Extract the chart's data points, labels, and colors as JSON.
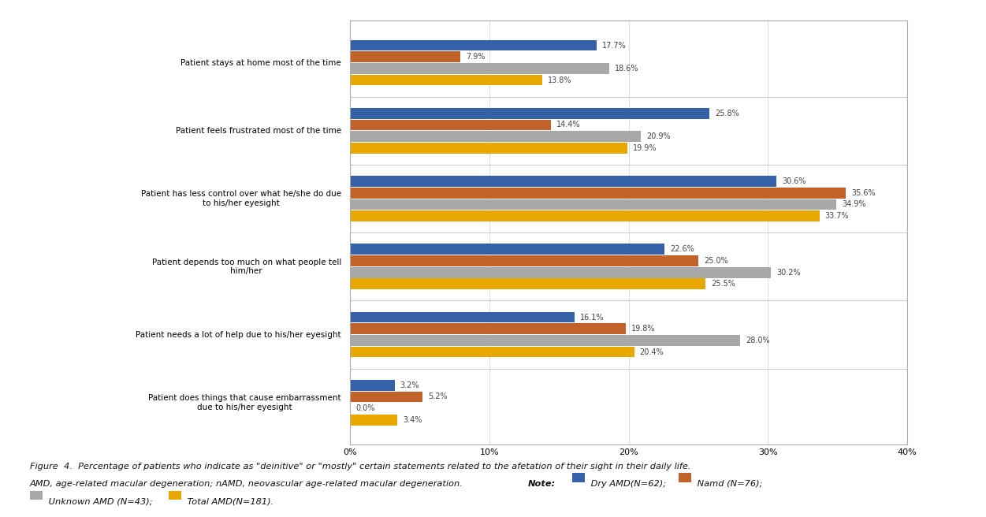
{
  "categories": [
    "Patient stays at home most of the time",
    "Patient feels frustrated most of the time",
    "Patient has less control over what he/she do due\nto his/her eyesight",
    "Patient depends too much on what people tell\nhim/her",
    "Patient needs a lot of help due to his/her eyesight",
    "Patient does things that cause embarrassment\ndue to his/her eyesight"
  ],
  "series_order": [
    "Dry AMD (N=62)",
    "Namd (N=76)",
    "Unknown AMD (N=43)",
    "Total AMD (N=181)"
  ],
  "series": {
    "Dry AMD (N=62)": [
      17.7,
      25.8,
      30.6,
      22.6,
      16.1,
      3.2
    ],
    "Namd (N=76)": [
      7.9,
      14.4,
      35.6,
      25.0,
      19.8,
      5.2
    ],
    "Unknown AMD (N=43)": [
      18.6,
      20.9,
      34.9,
      30.2,
      28.0,
      0.0
    ],
    "Total AMD (N=181)": [
      13.8,
      19.9,
      33.7,
      25.5,
      20.4,
      3.4
    ]
  },
  "colors": {
    "Dry AMD (N=62)": "#3461A8",
    "Namd (N=76)": "#C0622A",
    "Unknown AMD (N=43)": "#A8A8A8",
    "Total AMD (N=181)": "#E8A800"
  },
  "xlim": [
    0,
    40
  ],
  "xticks": [
    0,
    10,
    20,
    30,
    40
  ],
  "xticklabels": [
    "0%",
    "10%",
    "20%",
    "30%",
    "40%"
  ],
  "bar_height": 0.16,
  "group_padding": 0.55,
  "value_fontsize": 7.0,
  "label_fontsize": 7.5,
  "tick_fontsize": 8.0,
  "bg_color": "#FFFFFF",
  "grid_color": "#DDDDDD",
  "separator_color": "#CCCCCC",
  "text_color": "#444444"
}
